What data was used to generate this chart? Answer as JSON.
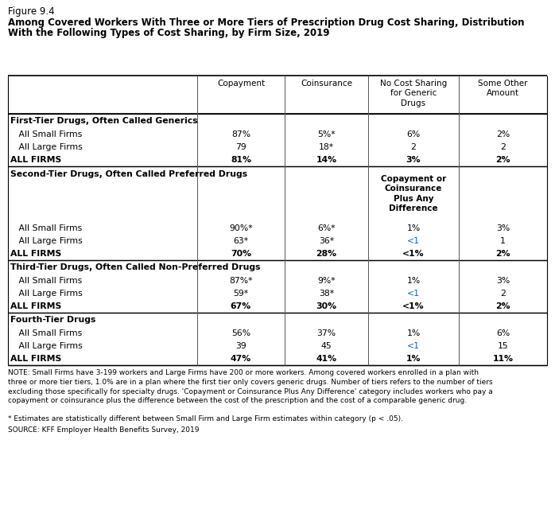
{
  "figure_label": "Figure 9.4",
  "title_line1": "Among Covered Workers With Three or More Tiers of Prescription Drug Cost Sharing, Distribution",
  "title_line2": "With the Following Types of Cost Sharing, by Firm Size, 2019",
  "col_headers": [
    "",
    "Copayment",
    "Coinsurance",
    "No Cost Sharing\nfor Generic\nDrugs",
    "Some Other\nAmount"
  ],
  "sections": [
    {
      "section_title": "First-Tier Drugs, Often Called Generics",
      "col3_header": null,
      "rows": [
        {
          "label": "All Small Firms",
          "indent": true,
          "bold": false,
          "values": [
            "87%",
            "5%*",
            "6%",
            "2%"
          ],
          "blue": [
            false,
            false,
            false,
            false
          ]
        },
        {
          "label": "All Large Firms",
          "indent": true,
          "bold": false,
          "values": [
            "79",
            "18*",
            "2",
            "2"
          ],
          "blue": [
            false,
            false,
            false,
            false
          ]
        },
        {
          "label": "ALL FIRMS",
          "indent": false,
          "bold": true,
          "values": [
            "81%",
            "14%",
            "3%",
            "2%"
          ],
          "blue": [
            false,
            false,
            false,
            false
          ]
        }
      ]
    },
    {
      "section_title": "Second-Tier Drugs, Often Called Preferred Drugs",
      "col3_header": "Copayment or\nCoinsurance\nPlus Any\nDifference",
      "rows": [
        {
          "label": "All Small Firms",
          "indent": true,
          "bold": false,
          "values": [
            "90%*",
            "6%*",
            "1%",
            "3%"
          ],
          "blue": [
            false,
            false,
            false,
            false
          ]
        },
        {
          "label": "All Large Firms",
          "indent": true,
          "bold": false,
          "values": [
            "63*",
            "36*",
            "<1",
            "1"
          ],
          "blue": [
            false,
            false,
            true,
            false
          ]
        },
        {
          "label": "ALL FIRMS",
          "indent": false,
          "bold": true,
          "values": [
            "70%",
            "28%",
            "<1%",
            "2%"
          ],
          "blue": [
            false,
            false,
            false,
            false
          ]
        }
      ]
    },
    {
      "section_title": "Third-Tier Drugs, Often Called Non-Preferred Drugs",
      "col3_header": null,
      "rows": [
        {
          "label": "All Small Firms",
          "indent": true,
          "bold": false,
          "values": [
            "87%*",
            "9%*",
            "1%",
            "3%"
          ],
          "blue": [
            false,
            false,
            false,
            false
          ]
        },
        {
          "label": "All Large Firms",
          "indent": true,
          "bold": false,
          "values": [
            "59*",
            "38*",
            "<1",
            "2"
          ],
          "blue": [
            false,
            false,
            true,
            false
          ]
        },
        {
          "label": "ALL FIRMS",
          "indent": false,
          "bold": true,
          "values": [
            "67%",
            "30%",
            "<1%",
            "2%"
          ],
          "blue": [
            false,
            false,
            false,
            false
          ]
        }
      ]
    },
    {
      "section_title": "Fourth-Tier Drugs",
      "col3_header": null,
      "rows": [
        {
          "label": "All Small Firms",
          "indent": true,
          "bold": false,
          "values": [
            "56%",
            "37%",
            "1%",
            "6%"
          ],
          "blue": [
            false,
            false,
            false,
            false
          ]
        },
        {
          "label": "All Large Firms",
          "indent": true,
          "bold": false,
          "values": [
            "39",
            "45",
            "<1",
            "15"
          ],
          "blue": [
            false,
            false,
            true,
            false
          ]
        },
        {
          "label": "ALL FIRMS",
          "indent": false,
          "bold": true,
          "values": [
            "47%",
            "41%",
            "1%",
            "11%"
          ],
          "blue": [
            false,
            false,
            false,
            false
          ]
        }
      ]
    }
  ],
  "note": "NOTE: Small Firms have 3-199 workers and Large Firms have 200 or more workers. Among covered workers enrolled in a plan with\nthree or more tier tiers, 1.0% are in a plan where the first tier only covers generic drugs. Number of tiers refers to the number of tiers\nexcluding those specifically for specialty drugs. 'Copayment or Coinsurance Plus Any Difference' category includes workers who pay a\ncopayment or coinsurance plus the difference between the cost of the prescription and the cost of a comparable generic drug.",
  "asterisk_note": "* Estimates are statistically different between Small Firm and Large Firm estimates within category (p < .05).",
  "source": "SOURCE: KFF Employer Health Benefits Survey, 2019",
  "blue_color": "#0563C1"
}
